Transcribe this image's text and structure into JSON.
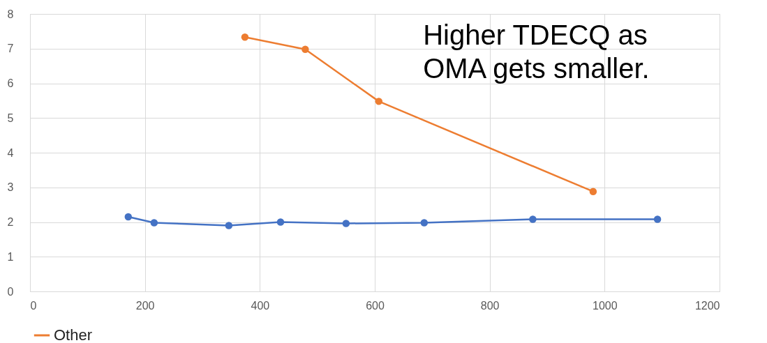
{
  "chart_data": {
    "type": "line",
    "xlim": [
      0,
      1200
    ],
    "xticks": [
      0,
      200,
      400,
      600,
      800,
      1000,
      1200
    ],
    "ylim": [
      0,
      8
    ],
    "yticks": [
      0,
      1,
      2,
      3,
      4,
      5,
      6,
      7,
      8
    ],
    "grid": true,
    "legend": "bottom",
    "marker": "circle",
    "annotations": [
      "Higher TDECQ as OMA gets smaller."
    ],
    "series": [
      {
        "color": "#4472c4",
        "x": [
          171,
          216,
          346,
          436,
          550,
          686,
          875,
          1092
        ],
        "values": [
          2.15,
          1.98,
          1.9,
          2.0,
          1.96,
          1.98,
          2.08,
          2.08
        ]
      },
      {
        "name": "Other",
        "color": "#ed7d31",
        "x": [
          374,
          479,
          607,
          980
        ],
        "values": [
          7.33,
          6.98,
          5.48,
          2.88
        ]
      }
    ]
  }
}
